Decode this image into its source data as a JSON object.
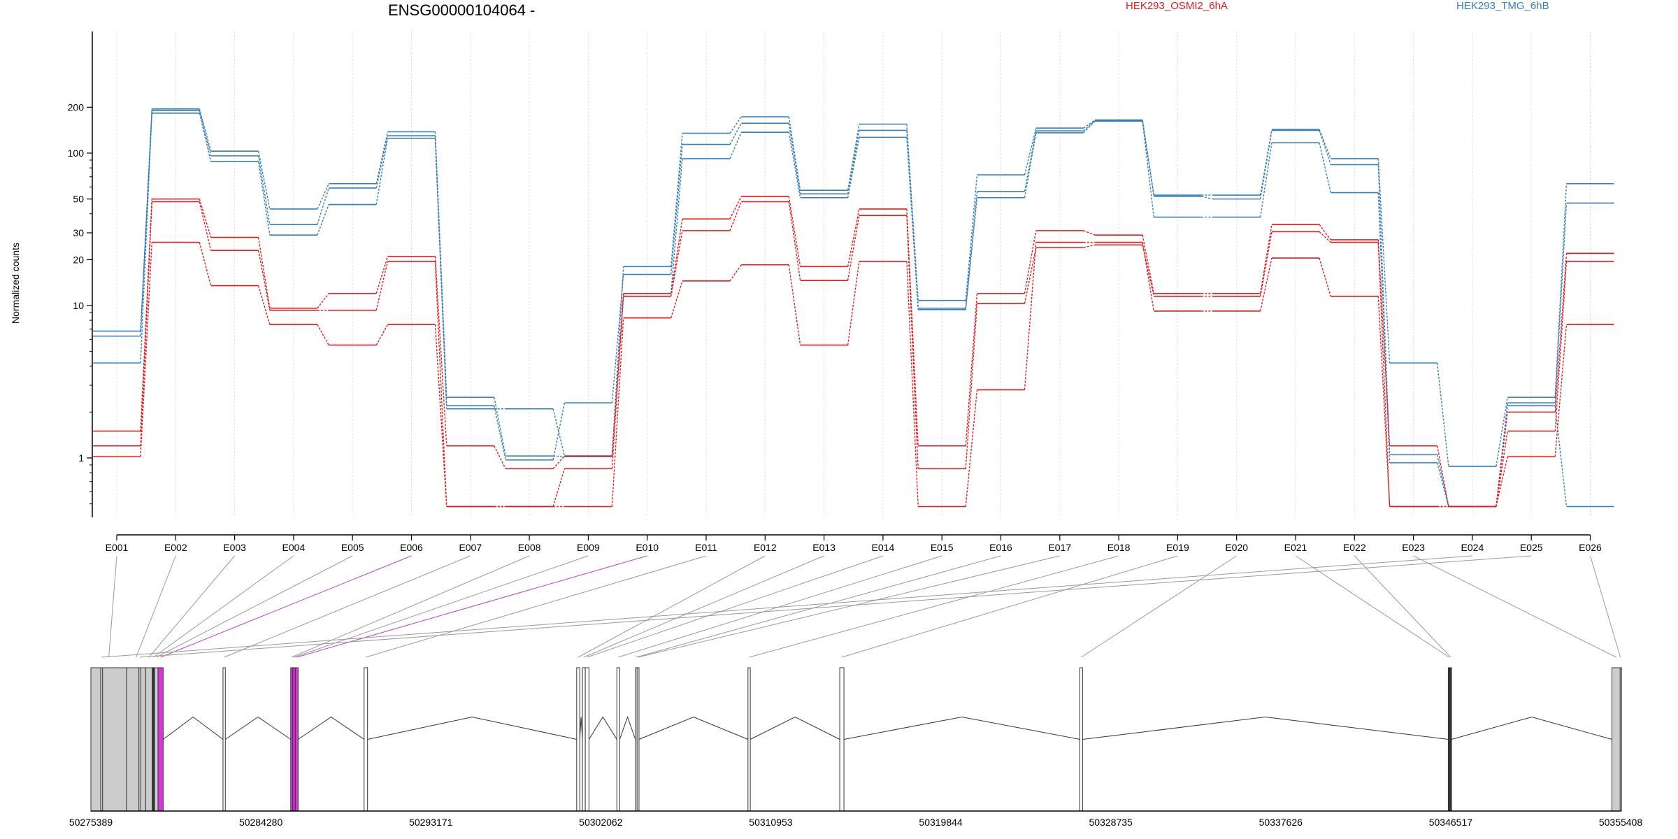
{
  "chart_data": {
    "type": "line",
    "title": "ENSG00000104064 -",
    "ylabel": "Normalized counts",
    "yscale": "log",
    "ylim": [
      0.48,
      240
    ],
    "yticks": [
      1,
      10,
      20,
      30,
      50,
      100,
      200
    ],
    "grid": "vertical dotted",
    "legend": [
      {
        "name": "HEK293_OSMI2_6hA",
        "color": "#e41a1c"
      },
      {
        "name": "HEK293_TMG_6hB",
        "color": "#377eb8"
      }
    ],
    "categories": [
      "E001",
      "E002",
      "E003",
      "E004",
      "E005",
      "E006",
      "E007",
      "E008",
      "E009",
      "E010",
      "E011",
      "E012",
      "E013",
      "E014",
      "E015",
      "E016",
      "E017",
      "E018",
      "E019",
      "E020",
      "E021",
      "E022",
      "E023",
      "E024",
      "E025",
      "E026"
    ],
    "series": [
      {
        "group": "HEK293_TMG_6hB",
        "color": "#377eb8",
        "values": [
          6.8,
          195,
          103,
          43,
          63,
          138,
          2.5,
          1.03,
          1.02,
          18,
          135,
          173,
          57,
          155,
          10.8,
          72,
          146,
          165,
          53,
          53,
          143,
          92,
          4.2,
          0.88,
          2.5,
          63
        ]
      },
      {
        "group": "HEK293_TMG_6hB",
        "color": "#377eb8",
        "values": [
          6.3,
          190,
          96,
          34,
          59,
          130,
          2.2,
          0.97,
          2.3,
          16,
          114,
          157,
          54,
          141,
          9.6,
          56,
          140,
          163,
          52,
          50,
          141,
          84,
          1.05,
          0.48,
          2.3,
          47
        ]
      },
      {
        "group": "HEK293_TMG_6hB",
        "color": "#377eb8",
        "values": [
          4.2,
          183,
          88,
          29,
          46,
          125,
          2.1,
          2.1,
          1.03,
          12,
          92,
          137,
          51,
          127,
          9.4,
          51,
          136,
          162,
          38,
          38,
          117,
          55,
          0.93,
          0.48,
          2.2,
          0.48
        ]
      },
      {
        "group": "HEK293_OSMI2_6hA",
        "color": "#e41a1c",
        "values": [
          1.5,
          50,
          28,
          9.6,
          12,
          21,
          1.2,
          0.85,
          1.03,
          12,
          37,
          52,
          18,
          43,
          1.2,
          12,
          31,
          29,
          12,
          12,
          34,
          27,
          1.2,
          0.48,
          2.0,
          22
        ]
      },
      {
        "group": "HEK293_OSMI2_6hA",
        "color": "#e41a1c",
        "values": [
          1.2,
          48,
          23,
          9.3,
          9.3,
          19.5,
          0.48,
          0.48,
          0.85,
          11.5,
          31,
          48,
          14.6,
          39,
          0.85,
          10.3,
          24,
          25,
          11.5,
          11.5,
          30.5,
          26,
          0.48,
          0.48,
          1.5,
          19.5
        ]
      },
      {
        "group": "HEK293_OSMI2_6hA",
        "color": "#e41a1c",
        "values": [
          1.02,
          26,
          13.5,
          7.5,
          5.5,
          7.5,
          0.48,
          0.48,
          0.48,
          8.3,
          14.5,
          18.5,
          5.5,
          19.5,
          0.48,
          2.8,
          26,
          26,
          9.2,
          9.2,
          20.5,
          11.5,
          0.48,
          0.48,
          1.02,
          7.5
        ]
      }
    ],
    "gene_model": {
      "coordinate_labels": [
        "50275389",
        "50284280",
        "50293171",
        "50302062",
        "50310953",
        "50319844",
        "50328735",
        "50337626",
        "50346517",
        "50355408"
      ],
      "coord_min": 50275389,
      "coord_max": 50355408,
      "exons": [
        {
          "id": "E001",
          "start": 50275389,
          "end": 50277260,
          "fill": "#cccccc"
        },
        {
          "id": "E002",
          "start": 50277260,
          "end": 50278250,
          "fill": "#cccccc"
        },
        {
          "id": "E003",
          "start": 50278250,
          "end": 50278600,
          "fill": "#cccccc"
        },
        {
          "id": "E004",
          "start": 50278600,
          "end": 50278720,
          "fill": "#333333"
        },
        {
          "id": "E005",
          "start": 50278720,
          "end": 50278900,
          "fill": "#cccccc"
        },
        {
          "id": "E006",
          "start": 50278900,
          "end": 50279170,
          "fill": "#dd33dd"
        },
        {
          "id": "E007",
          "start": 50282300,
          "end": 50282420,
          "fill": "#ffffff"
        },
        {
          "id": "E008",
          "start": 50285840,
          "end": 50285950,
          "fill": "#dd33dd"
        },
        {
          "id": "E009",
          "start": 50285950,
          "end": 50286080,
          "fill": "#dd33dd"
        },
        {
          "id": "E010",
          "start": 50286080,
          "end": 50286230,
          "fill": "#dd33dd"
        },
        {
          "id": "E011",
          "start": 50289680,
          "end": 50289860,
          "fill": "#ffffff"
        },
        {
          "id": "E012",
          "start": 50300800,
          "end": 50300960,
          "fill": "#ffffff"
        },
        {
          "id": "E013",
          "start": 50301100,
          "end": 50301250,
          "fill": "#ffffff"
        },
        {
          "id": "E014",
          "start": 50301250,
          "end": 50301440,
          "fill": "#ffffff"
        },
        {
          "id": "E015",
          "start": 50302900,
          "end": 50303050,
          "fill": "#ffffff"
        },
        {
          "id": "E016",
          "start": 50303870,
          "end": 50303960,
          "fill": "#ffffff"
        },
        {
          "id": "E017",
          "start": 50303960,
          "end": 50304060,
          "fill": "#ffffff"
        },
        {
          "id": "E018",
          "start": 50309760,
          "end": 50309880,
          "fill": "#ffffff"
        },
        {
          "id": "E019",
          "start": 50314560,
          "end": 50314780,
          "fill": "#ffffff"
        },
        {
          "id": "E020",
          "start": 50327120,
          "end": 50327260,
          "fill": "#ffffff"
        },
        {
          "id": "E021",
          "start": 50346390,
          "end": 50346470,
          "fill": "#333333"
        },
        {
          "id": "E022",
          "start": 50346470,
          "end": 50346560,
          "fill": "#333333"
        },
        {
          "id": "E023",
          "start": 50354950,
          "end": 50355408,
          "fill": "#cccccc"
        },
        {
          "id": "E024",
          "start": 50275900,
          "end": 50276000,
          "fill": "#cccccc"
        },
        {
          "id": "E025",
          "start": 50277900,
          "end": 50278000,
          "fill": "#cccccc"
        },
        {
          "id": "E026",
          "start": 50355380,
          "end": 50355408,
          "fill": "#cccccc"
        }
      ],
      "introns": [
        [
          50279170,
          50282300
        ],
        [
          50282420,
          50285840
        ],
        [
          50286230,
          50289680
        ],
        [
          50289860,
          50300800
        ],
        [
          50300960,
          50301100
        ],
        [
          50301440,
          50302900
        ],
        [
          50303050,
          50303870
        ],
        [
          50304060,
          50309760
        ],
        [
          50309880,
          50314560
        ],
        [
          50314780,
          50327120
        ],
        [
          50327260,
          50346390
        ],
        [
          50346560,
          50354950
        ]
      ],
      "highlighted_exons": [
        "E006",
        "E010"
      ]
    }
  }
}
